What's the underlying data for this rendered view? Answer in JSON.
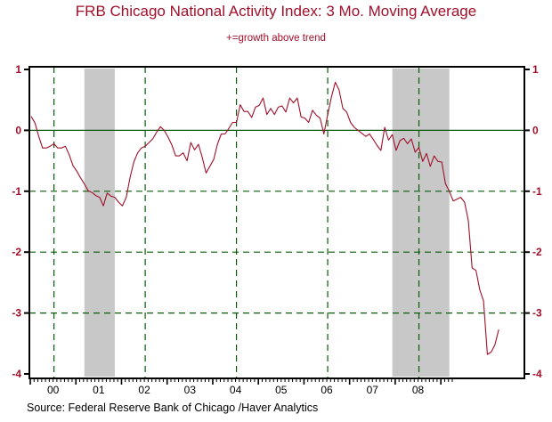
{
  "chart_data": {
    "type": "line",
    "title": "FRB Chicago National Activity Index: 3 Mo. Moving Average",
    "subtitle": "+=growth above trend",
    "source": "Source:  Federal Reserve Bank of Chicago /Haver Analytics",
    "xlabel": "",
    "ylabel": "",
    "ylim": [
      -4,
      1
    ],
    "yticks": [
      "1",
      "0",
      "-1",
      "-2",
      "-3",
      "-4"
    ],
    "ytick_values": [
      1,
      0,
      -1,
      -2,
      -3,
      -4
    ],
    "xticks": [
      "00",
      "01",
      "02",
      "03",
      "04",
      "05",
      "06",
      "07",
      "08"
    ],
    "x_start": "2000-01",
    "frequency": "monthly",
    "grid": {
      "horizontal_dashed": [
        -1,
        -2,
        -3
      ],
      "zero_line": true,
      "vertical_dashed": [
        "2000-07",
        "2002-07",
        "2004-07",
        "2006-07",
        "2008-07"
      ]
    },
    "shaded_regions": [
      {
        "label": "recession",
        "start": "2001-03",
        "end": "2001-11"
      },
      {
        "label": "recession",
        "start": "2007-12",
        "end": "2009-03"
      }
    ],
    "colors": {
      "line": "#a0102a",
      "grid": "#0a5a0a",
      "shade": "#c8c8c8",
      "text": "#a0102a"
    },
    "series": [
      {
        "name": "CFNAI 3-month moving average",
        "values": [
          0.23,
          0.12,
          -0.1,
          -0.29,
          -0.29,
          -0.26,
          -0.22,
          -0.29,
          -0.29,
          -0.26,
          -0.4,
          -0.58,
          -0.67,
          -0.78,
          -0.88,
          -0.99,
          -1.02,
          -1.07,
          -1.1,
          -1.24,
          -1.03,
          -1.08,
          -1.1,
          -1.18,
          -1.24,
          -1.1,
          -0.78,
          -0.52,
          -0.37,
          -0.29,
          -0.26,
          -0.2,
          -0.14,
          -0.03,
          0.06,
          0.0,
          -0.11,
          -0.24,
          -0.42,
          -0.42,
          -0.37,
          -0.5,
          -0.2,
          -0.32,
          -0.23,
          -0.44,
          -0.7,
          -0.59,
          -0.48,
          -0.23,
          -0.06,
          -0.06,
          0.03,
          0.13,
          0.13,
          0.42,
          0.31,
          0.31,
          0.21,
          0.38,
          0.41,
          0.53,
          0.26,
          0.36,
          0.26,
          0.38,
          0.4,
          0.3,
          0.53,
          0.45,
          0.53,
          0.22,
          0.2,
          0.13,
          0.33,
          0.25,
          0.2,
          -0.06,
          0.26,
          0.55,
          0.79,
          0.66,
          0.36,
          0.3,
          0.13,
          0.05,
          0.0,
          -0.05,
          -0.1,
          -0.06,
          -0.15,
          -0.25,
          -0.33,
          0.05,
          -0.16,
          -0.07,
          -0.33,
          -0.17,
          -0.13,
          -0.22,
          -0.14,
          -0.36,
          -0.28,
          -0.51,
          -0.38,
          -0.59,
          -0.42,
          -0.51,
          -0.52,
          -0.88,
          -1.0,
          -1.16,
          -1.13,
          -1.1,
          -1.18,
          -1.48,
          -2.26,
          -2.3,
          -2.62,
          -2.8,
          -3.68,
          -3.64,
          -3.52,
          -3.27
        ]
      }
    ]
  }
}
